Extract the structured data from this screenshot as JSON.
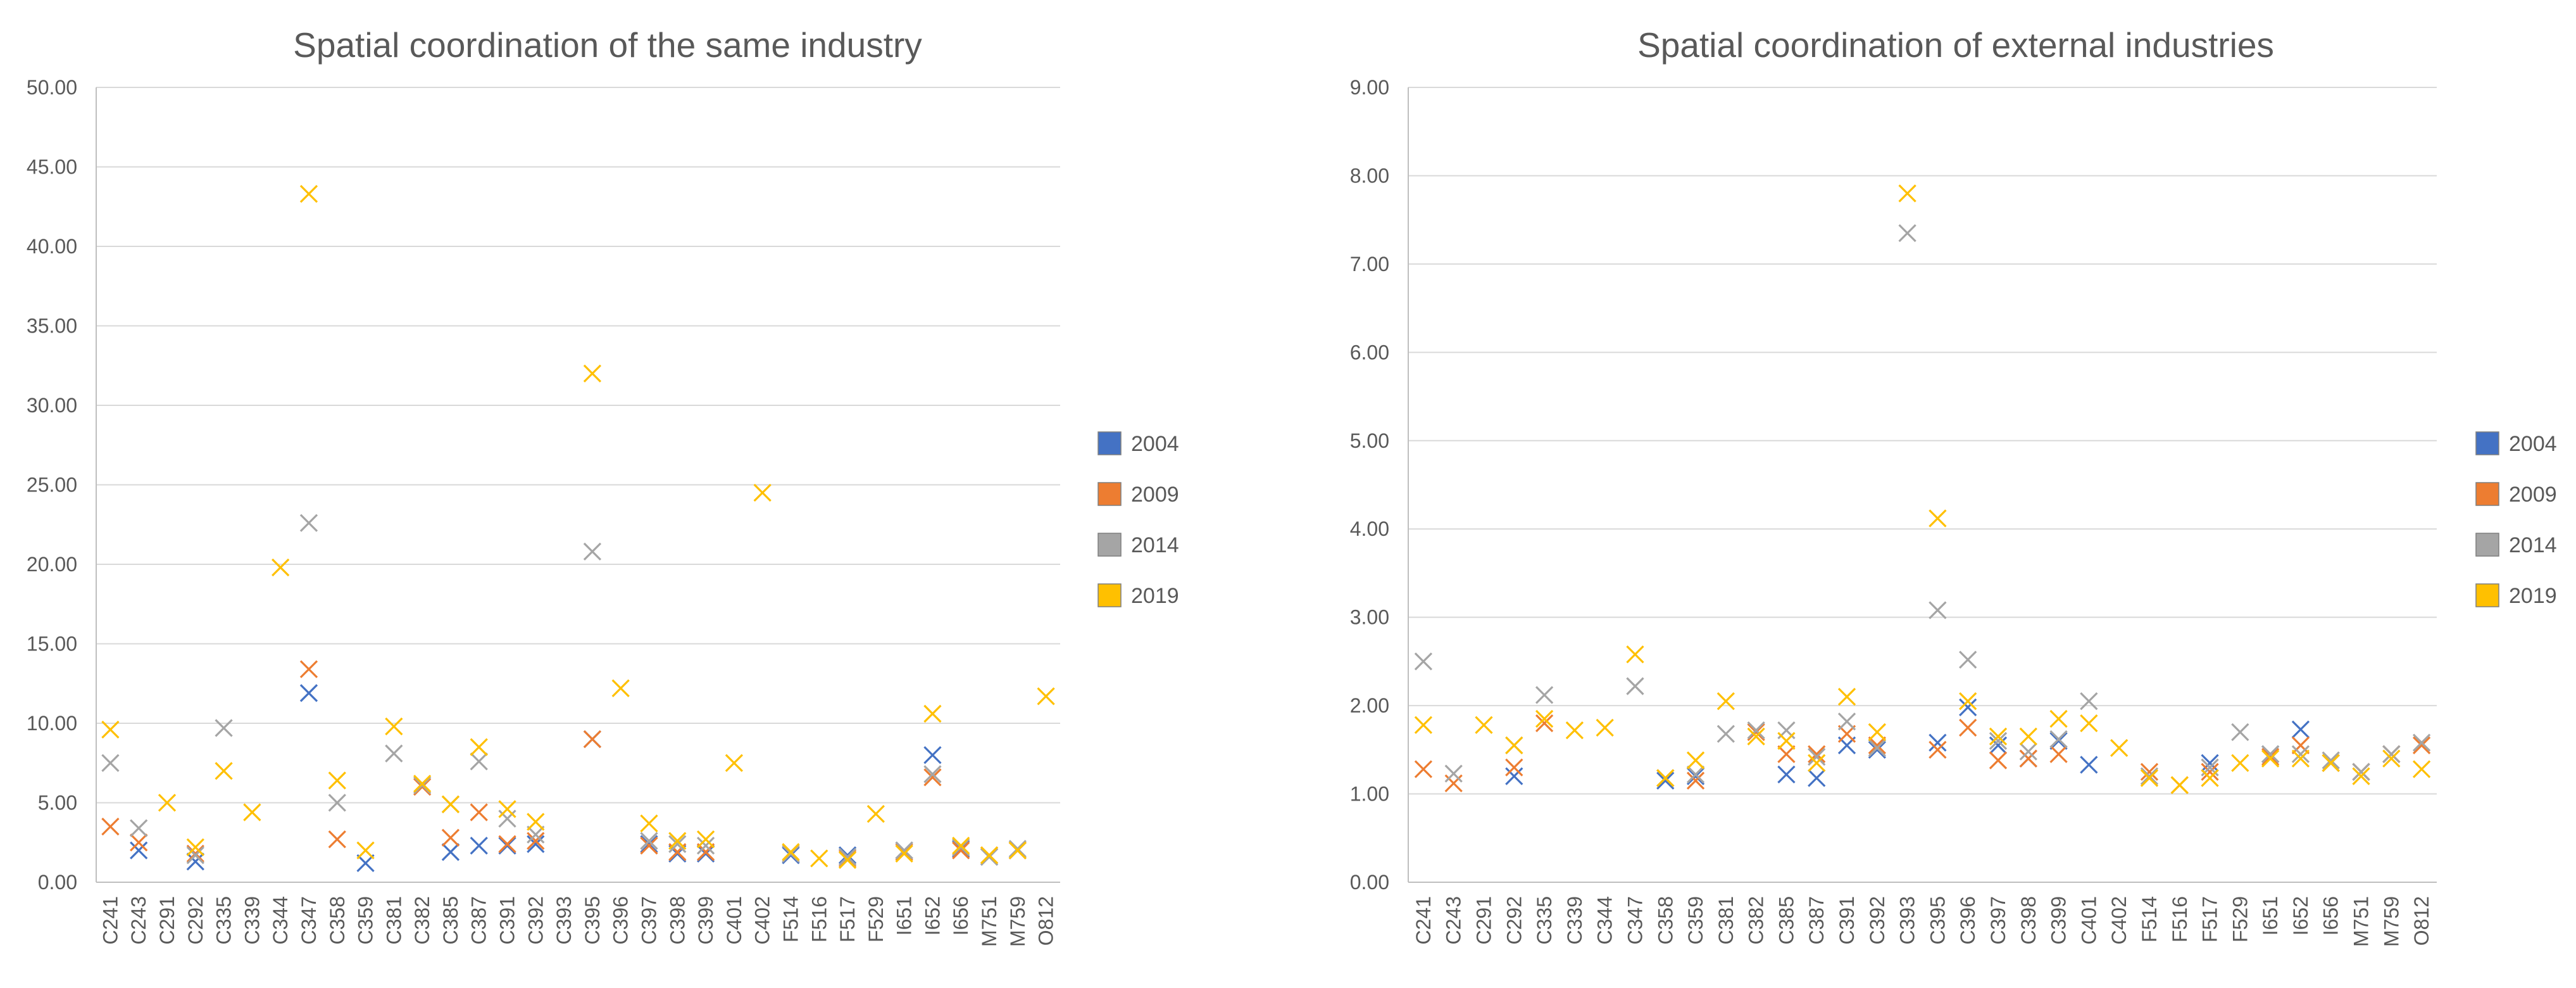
{
  "chart_data": [
    {
      "type": "scatter",
      "title": "Spatial coordination of the same industry",
      "ylim": [
        0,
        50
      ],
      "yticks": [
        "0.00",
        "5.00",
        "10.00",
        "15.00",
        "20.00",
        "25.00",
        "30.00",
        "35.00",
        "40.00",
        "45.00",
        "50.00"
      ],
      "xlabel": "",
      "ylabel": "",
      "legend_position": "right",
      "categories": [
        "C241",
        "C243",
        "C291",
        "C292",
        "C335",
        "C339",
        "C344",
        "C347",
        "C358",
        "C359",
        "C381",
        "C382",
        "C385",
        "C387",
        "C391",
        "C392",
        "C393",
        "C395",
        "C396",
        "C397",
        "C398",
        "C399",
        "C401",
        "C402",
        "F514",
        "F516",
        "F517",
        "F529",
        "I651",
        "I652",
        "I656",
        "M751",
        "M759",
        "O812"
      ],
      "series": [
        {
          "name": "2004",
          "values": [
            null,
            2.0,
            null,
            1.3,
            null,
            null,
            null,
            11.9,
            null,
            1.2,
            null,
            null,
            1.9,
            2.3,
            2.3,
            2.4,
            null,
            9.0,
            null,
            2.4,
            1.8,
            1.8,
            null,
            null,
            1.7,
            null,
            1.7,
            null,
            2.0,
            8.0,
            2.1,
            1.6,
            2.0,
            null
          ]
        },
        {
          "name": "2009",
          "values": [
            3.5,
            2.5,
            null,
            1.8,
            null,
            null,
            null,
            13.4,
            2.7,
            null,
            null,
            6.0,
            2.8,
            4.4,
            2.4,
            2.6,
            null,
            9.0,
            null,
            2.3,
            1.9,
            1.9,
            null,
            null,
            1.8,
            null,
            1.5,
            null,
            1.9,
            6.6,
            2.0,
            1.7,
            2.0,
            null
          ]
        },
        {
          "name": "2014",
          "values": [
            7.5,
            3.4,
            null,
            1.7,
            9.7,
            null,
            null,
            22.6,
            5.0,
            null,
            8.1,
            6.1,
            4.9,
            7.6,
            4.0,
            3.0,
            null,
            20.8,
            null,
            2.6,
            2.4,
            2.3,
            null,
            null,
            1.8,
            null,
            1.6,
            null,
            2.0,
            6.8,
            2.2,
            1.6,
            2.1,
            null
          ]
        },
        {
          "name": "2019",
          "values": [
            9.6,
            null,
            5.0,
            2.2,
            7.0,
            4.4,
            19.8,
            43.3,
            6.4,
            2.0,
            9.8,
            6.2,
            4.9,
            8.5,
            4.6,
            3.8,
            null,
            32.0,
            12.2,
            3.7,
            2.6,
            2.7,
            7.5,
            24.5,
            1.9,
            1.5,
            1.4,
            4.3,
            1.8,
            10.6,
            2.3,
            1.7,
            2.0,
            11.7
          ]
        }
      ]
    },
    {
      "type": "scatter",
      "title": "Spatial coordination of external industries",
      "ylim": [
        0,
        9
      ],
      "yticks": [
        "0.00",
        "1.00",
        "2.00",
        "3.00",
        "4.00",
        "5.00",
        "6.00",
        "7.00",
        "8.00",
        "9.00"
      ],
      "xlabel": "",
      "ylabel": "",
      "legend_position": "right",
      "categories": [
        "C241",
        "C243",
        "C291",
        "C292",
        "C335",
        "C339",
        "C344",
        "C347",
        "C358",
        "C359",
        "C381",
        "C382",
        "C385",
        "C387",
        "C391",
        "C392",
        "C393",
        "C395",
        "C396",
        "C397",
        "C398",
        "C399",
        "C401",
        "C402",
        "F514",
        "F516",
        "F517",
        "F529",
        "I651",
        "I652",
        "I656",
        "M751",
        "M759",
        "O812"
      ],
      "series": [
        {
          "name": "2004",
          "values": [
            null,
            null,
            null,
            1.2,
            null,
            null,
            null,
            null,
            1.15,
            1.2,
            null,
            null,
            1.22,
            1.18,
            1.55,
            1.5,
            null,
            1.58,
            1.98,
            1.55,
            1.4,
            1.6,
            1.33,
            null,
            null,
            null,
            1.35,
            null,
            1.45,
            1.73,
            1.35,
            1.25,
            1.45,
            null
          ]
        },
        {
          "name": "2009",
          "values": [
            1.28,
            1.12,
            null,
            1.3,
            1.8,
            null,
            null,
            null,
            1.18,
            1.15,
            null,
            1.7,
            1.45,
            1.45,
            1.68,
            1.55,
            null,
            1.5,
            1.75,
            1.38,
            1.4,
            1.45,
            null,
            null,
            1.25,
            1.1,
            1.25,
            null,
            1.42,
            1.55,
            1.35,
            1.25,
            1.45,
            1.55
          ]
        },
        {
          "name": "2014",
          "values": [
            2.5,
            1.23,
            null,
            1.55,
            2.12,
            null,
            null,
            2.22,
            1.18,
            1.22,
            1.68,
            1.72,
            1.72,
            1.42,
            1.82,
            1.52,
            7.35,
            3.08,
            2.52,
            1.6,
            1.48,
            1.62,
            2.05,
            null,
            1.2,
            null,
            1.3,
            1.7,
            1.45,
            1.45,
            1.38,
            1.25,
            1.45,
            1.58
          ]
        },
        {
          "name": "2019",
          "values": [
            1.78,
            null,
            1.78,
            1.55,
            1.85,
            1.72,
            1.75,
            2.58,
            1.18,
            1.38,
            2.05,
            1.65,
            1.6,
            1.35,
            2.1,
            1.7,
            7.8,
            4.12,
            2.05,
            1.65,
            1.65,
            1.85,
            1.8,
            1.52,
            1.18,
            1.1,
            1.18,
            1.35,
            1.4,
            1.4,
            1.35,
            1.2,
            1.4,
            1.28
          ]
        }
      ]
    }
  ],
  "colors": {
    "2004": "#4472c4",
    "2009": "#ed7d31",
    "2014": "#a5a5a5",
    "2019": "#ffc000"
  }
}
